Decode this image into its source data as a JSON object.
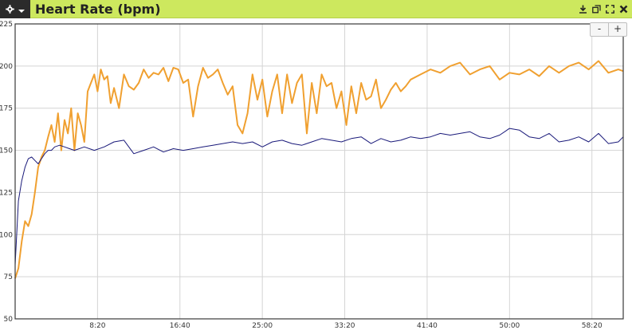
{
  "window": {
    "title": "Heart Rate (bpm)",
    "icons": [
      "gear-icon",
      "chevron-down-icon",
      "download-icon",
      "popout-icon",
      "fullscreen-icon",
      "close-icon"
    ]
  },
  "zoom": {
    "minus_label": "-",
    "plus_label": "+"
  },
  "colors": {
    "titlebar": "#cde85e",
    "series_orange": "#f0a030",
    "series_navy": "#1a1a7a",
    "grid": "#d4d4d4"
  },
  "chart_data": {
    "type": "line",
    "title": "Heart Rate (bpm)",
    "xlabel": "",
    "ylabel": "",
    "ylim": [
      50,
      225
    ],
    "xlim_seconds": [
      0,
      3690
    ],
    "x_ticks": [
      "8:20",
      "16:40",
      "25:00",
      "33:20",
      "41:40",
      "50:00",
      "58:20"
    ],
    "y_ticks": [
      "50",
      "75",
      "100",
      "125",
      "150",
      "175",
      "200",
      "225"
    ],
    "grid": true,
    "legend": "none",
    "series": [
      {
        "color": "#f0a030",
        "x": [
          "0:00",
          "0:20",
          "0:40",
          "1:00",
          "1:20",
          "1:40",
          "2:00",
          "2:20",
          "2:40",
          "3:00",
          "3:20",
          "3:40",
          "4:00",
          "4:20",
          "4:40",
          "5:00",
          "5:20",
          "5:40",
          "6:00",
          "6:20",
          "6:40",
          "7:00",
          "7:20",
          "7:40",
          "8:00",
          "8:20",
          "8:40",
          "9:00",
          "9:20",
          "9:40",
          "10:00",
          "10:30",
          "11:00",
          "11:30",
          "12:00",
          "12:30",
          "13:00",
          "13:30",
          "14:00",
          "14:30",
          "15:00",
          "15:30",
          "16:00",
          "16:30",
          "17:00",
          "17:30",
          "18:00",
          "18:30",
          "19:00",
          "19:30",
          "20:00",
          "20:30",
          "21:00",
          "21:30",
          "22:00",
          "22:30",
          "23:00",
          "23:30",
          "24:00",
          "24:30",
          "25:00",
          "25:30",
          "26:00",
          "26:30",
          "27:00",
          "27:30",
          "28:00",
          "28:30",
          "29:00",
          "29:30",
          "30:00",
          "30:30",
          "31:00",
          "31:30",
          "32:00",
          "32:30",
          "33:00",
          "33:30",
          "34:00",
          "34:30",
          "35:00",
          "35:30",
          "36:00",
          "36:30",
          "37:00",
          "37:30",
          "38:00",
          "38:30",
          "39:00",
          "39:30",
          "40:00",
          "41:00",
          "42:00",
          "43:00",
          "44:00",
          "45:00",
          "46:00",
          "47:00",
          "48:00",
          "49:00",
          "50:00",
          "51:00",
          "52:00",
          "53:00",
          "54:00",
          "55:00",
          "56:00",
          "57:00",
          "58:00",
          "59:00",
          "60:00",
          "61:00",
          "61:30"
        ],
        "y": [
          74,
          80,
          96,
          108,
          105,
          112,
          125,
          140,
          146,
          150,
          158,
          165,
          155,
          172,
          150,
          168,
          160,
          175,
          150,
          172,
          165,
          155,
          185,
          190,
          195,
          185,
          198,
          192,
          194,
          178,
          187,
          175,
          195,
          188,
          186,
          190,
          198,
          193,
          196,
          195,
          199,
          191,
          199,
          198,
          190,
          192,
          170,
          188,
          199,
          193,
          195,
          198,
          190,
          183,
          188,
          165,
          160,
          172,
          195,
          180,
          192,
          170,
          185,
          195,
          172,
          195,
          178,
          190,
          195,
          160,
          190,
          172,
          195,
          188,
          190,
          175,
          185,
          165,
          188,
          172,
          190,
          180,
          182,
          192,
          175,
          180,
          186,
          190,
          185,
          188,
          192,
          195,
          198,
          196,
          200,
          202,
          195,
          198,
          200,
          192,
          196,
          195,
          198,
          194,
          200,
          196,
          200,
          202,
          198,
          203,
          196,
          198,
          197
        ]
      },
      {
        "color": "#1a1a7a",
        "x": [
          "0:00",
          "0:20",
          "0:40",
          "1:00",
          "1:20",
          "1:40",
          "2:00",
          "2:20",
          "2:40",
          "3:00",
          "3:20",
          "3:40",
          "4:00",
          "4:30",
          "5:00",
          "5:30",
          "6:00",
          "7:00",
          "8:00",
          "9:00",
          "10:00",
          "11:00",
          "12:00",
          "13:00",
          "14:00",
          "15:00",
          "16:00",
          "17:00",
          "18:00",
          "19:00",
          "20:00",
          "21:00",
          "22:00",
          "23:00",
          "24:00",
          "25:00",
          "26:00",
          "27:00",
          "28:00",
          "29:00",
          "30:00",
          "31:00",
          "32:00",
          "33:00",
          "34:00",
          "35:00",
          "36:00",
          "37:00",
          "38:00",
          "39:00",
          "40:00",
          "41:00",
          "42:00",
          "43:00",
          "44:00",
          "45:00",
          "46:00",
          "47:00",
          "48:00",
          "49:00",
          "50:00",
          "51:00",
          "52:00",
          "53:00",
          "54:00",
          "55:00",
          "56:00",
          "57:00",
          "58:00",
          "59:00",
          "60:00",
          "61:00",
          "61:30"
        ],
        "y": [
          82,
          120,
          132,
          140,
          145,
          146,
          144,
          142,
          145,
          148,
          150,
          150,
          152,
          153,
          152,
          151,
          150,
          152,
          150,
          152,
          155,
          156,
          148,
          150,
          152,
          149,
          151,
          150,
          151,
          152,
          153,
          154,
          155,
          154,
          155,
          152,
          155,
          156,
          154,
          153,
          155,
          157,
          156,
          155,
          157,
          158,
          154,
          157,
          155,
          156,
          158,
          157,
          158,
          160,
          159,
          160,
          161,
          158,
          157,
          159,
          163,
          162,
          158,
          157,
          160,
          155,
          156,
          158,
          155,
          160,
          154,
          155,
          158
        ]
      }
    ]
  }
}
